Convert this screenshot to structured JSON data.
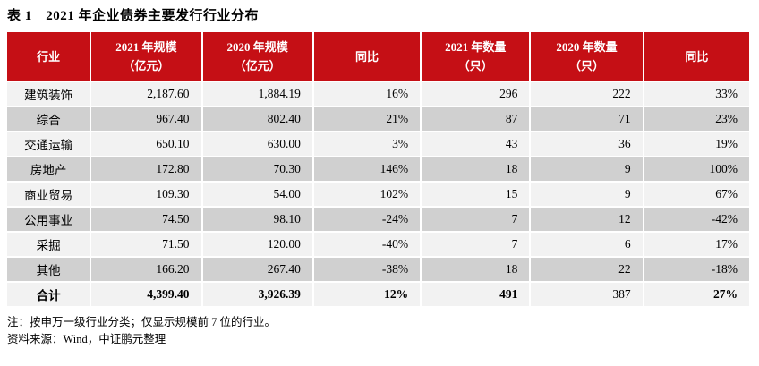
{
  "title": "表 1　2021 年企业债券主要发行行业分布",
  "colors": {
    "header_bg": "#C50F15",
    "row_light": "#F2F2F2",
    "row_dark": "#D0D0D0",
    "header_text": "#FFFFFF",
    "text": "#000000"
  },
  "table": {
    "headers": {
      "industry": "行业",
      "scale2021_l1": "2021 年规模",
      "scale2021_l2": "（亿元）",
      "scale2020_l1": "2020 年规模",
      "scale2020_l2": "（亿元）",
      "yoy_scale": "同比",
      "count2021_l1": "2021 年数量",
      "count2021_l2": "（只）",
      "count2020_l1": "2020 年数量",
      "count2020_l2": "（只）",
      "yoy_count": "同比"
    },
    "rows": [
      {
        "industry": "建筑装饰",
        "scale2021": "2,187.60",
        "scale2020": "1,884.19",
        "yoy_scale": "16%",
        "count2021": "296",
        "count2020": "222",
        "yoy_count": "33%"
      },
      {
        "industry": "综合",
        "scale2021": "967.40",
        "scale2020": "802.40",
        "yoy_scale": "21%",
        "count2021": "87",
        "count2020": "71",
        "yoy_count": "23%"
      },
      {
        "industry": "交通运输",
        "scale2021": "650.10",
        "scale2020": "630.00",
        "yoy_scale": "3%",
        "count2021": "43",
        "count2020": "36",
        "yoy_count": "19%"
      },
      {
        "industry": "房地产",
        "scale2021": "172.80",
        "scale2020": "70.30",
        "yoy_scale": "146%",
        "count2021": "18",
        "count2020": "9",
        "yoy_count": "100%"
      },
      {
        "industry": "商业贸易",
        "scale2021": "109.30",
        "scale2020": "54.00",
        "yoy_scale": "102%",
        "count2021": "15",
        "count2020": "9",
        "yoy_count": "67%"
      },
      {
        "industry": "公用事业",
        "scale2021": "74.50",
        "scale2020": "98.10",
        "yoy_scale": "-24%",
        "count2021": "7",
        "count2020": "12",
        "yoy_count": "-42%"
      },
      {
        "industry": "采掘",
        "scale2021": "71.50",
        "scale2020": "120.00",
        "yoy_scale": "-40%",
        "count2021": "7",
        "count2020": "6",
        "yoy_count": "17%"
      },
      {
        "industry": "其他",
        "scale2021": "166.20",
        "scale2020": "267.40",
        "yoy_scale": "-38%",
        "count2021": "18",
        "count2020": "22",
        "yoy_count": "-18%"
      }
    ],
    "total": {
      "industry": "合计",
      "scale2021": "4,399.40",
      "scale2020": "3,926.39",
      "yoy_scale": "12%",
      "count2021": "491",
      "count2020": "387",
      "yoy_count": "27%"
    }
  },
  "notes": {
    "note": "注：按申万一级行业分类；仅显示规模前 7 位的行业。",
    "source": "资料来源：Wind，中证鹏元整理"
  }
}
